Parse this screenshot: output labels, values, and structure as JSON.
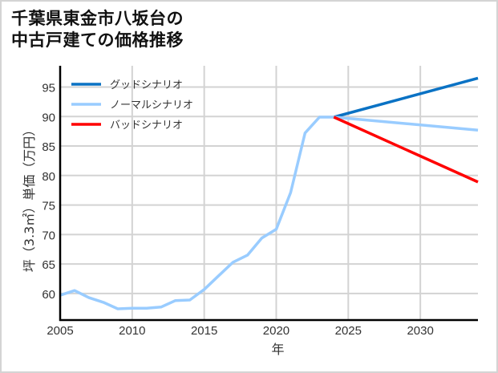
{
  "title_line1": "千葉県東金市八坂台の",
  "title_line2": "中古戸建ての価格推移",
  "chart_data": {
    "type": "line",
    "title": "千葉県東金市八坂台の中古戸建ての価格推移",
    "xlabel": "年",
    "ylabel": "坪（3.3㎡）単価（万円）",
    "xlim": [
      2005,
      2034
    ],
    "ylim": [
      55.5,
      98.6
    ],
    "xticks": [
      2005,
      2010,
      2015,
      2020,
      2025,
      2030
    ],
    "yticks": [
      60,
      65,
      70,
      75,
      80,
      85,
      90,
      95
    ],
    "grid": true,
    "legend_position": "upper left",
    "series": [
      {
        "name": "グッドシナリオ",
        "color": "#0a72c4",
        "x": [
          2024,
          2034
        ],
        "y": [
          89.9,
          96.5
        ]
      },
      {
        "name": "ノーマルシナリオ",
        "color": "#99ccff",
        "x": [
          2005,
          2006,
          2007,
          2008,
          2009,
          2010,
          2011,
          2012,
          2013,
          2014,
          2015,
          2016,
          2017,
          2018,
          2019,
          2020,
          2021,
          2022,
          2023,
          2024,
          2034
        ],
        "y": [
          59.7,
          60.5,
          59.3,
          58.5,
          57.4,
          57.5,
          57.5,
          57.7,
          58.8,
          58.9,
          60.7,
          63.0,
          65.3,
          66.5,
          69.4,
          70.9,
          77.1,
          87.2,
          89.9,
          89.9,
          87.7
        ]
      },
      {
        "name": "バッドシナリオ",
        "color": "#ff0000",
        "x": [
          2024,
          2034
        ],
        "y": [
          89.9,
          78.9
        ]
      }
    ]
  }
}
